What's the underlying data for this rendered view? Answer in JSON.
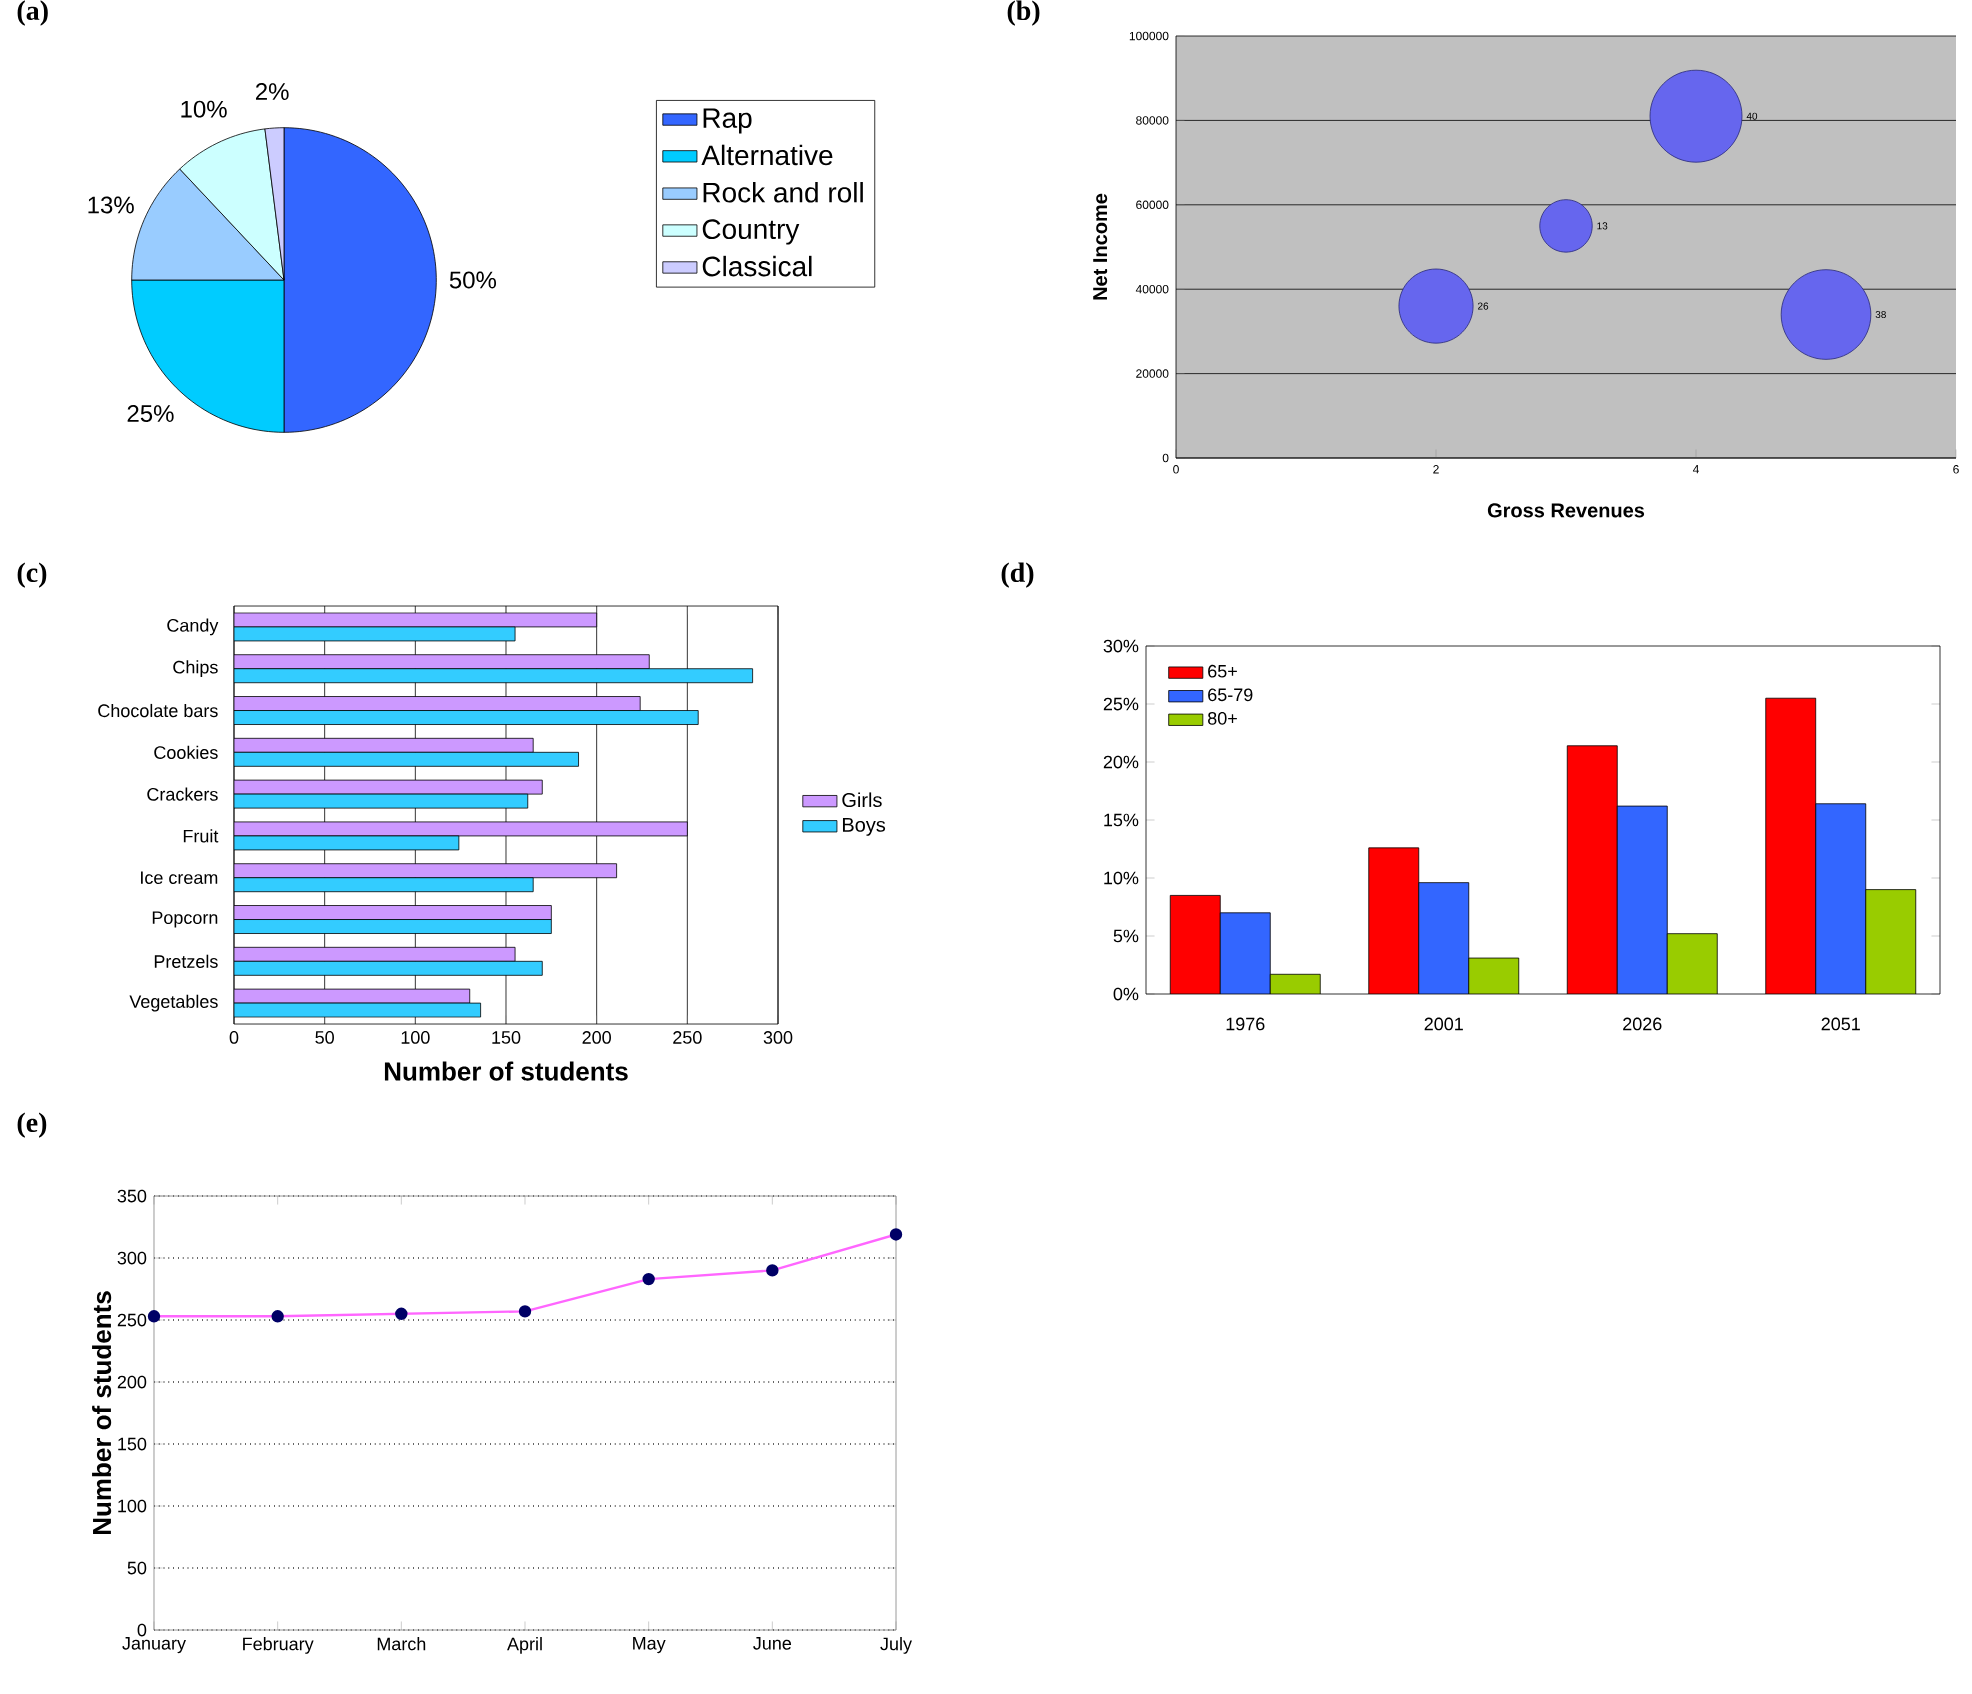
{
  "chart_data": [
    {
      "type": "pie",
      "title": "(a)",
      "categories": [
        "Rap",
        "Alternative",
        "Rock and roll",
        "Country",
        "Classical"
      ],
      "values": [
        50,
        25,
        13,
        10,
        2
      ],
      "colors": [
        "#3366ff",
        "#00ccff",
        "#99ccff",
        "#ccffff",
        "#ccccff"
      ],
      "value_labels": [
        "50%",
        "25%",
        "13%",
        "10%",
        "2%"
      ],
      "legend": "right"
    },
    {
      "type": "bubble",
      "title": "(b)",
      "xlabel": "Gross Revenues",
      "ylabel": "Net Income",
      "x": [
        2,
        3,
        4,
        5
      ],
      "values": [
        36000,
        55000,
        81000,
        34000
      ],
      "sizes": [
        26,
        13,
        40,
        38
      ],
      "value_labels": [
        "26",
        "13",
        "40",
        "38"
      ],
      "color": "#6666ee",
      "xlim": [
        0,
        6
      ],
      "xticks": [
        0,
        2,
        4,
        6
      ],
      "ylim": [
        0,
        100000
      ],
      "yticks": [
        0,
        20000,
        40000,
        60000,
        80000,
        100000
      ],
      "grid": "y"
    },
    {
      "type": "bar",
      "title": "(c)",
      "orientation": "horizontal",
      "xlabel": "Number of students",
      "categories": [
        "Candy",
        "Chips",
        "Chocolate bars",
        "Cookies",
        "Crackers",
        "Fruit",
        "Ice cream",
        "Popcorn",
        "Pretzels",
        "Vegetables"
      ],
      "series": [
        {
          "name": "Girls",
          "color": "#cc99ff",
          "values": [
            200,
            229,
            224,
            165,
            170,
            250,
            211,
            175,
            155,
            130
          ]
        },
        {
          "name": "Boys",
          "color": "#33ccff",
          "values": [
            155,
            286,
            256,
            190,
            162,
            124,
            165,
            175,
            170,
            136
          ]
        }
      ],
      "xlim": [
        0,
        300
      ],
      "xticks": [
        0,
        50,
        100,
        150,
        200,
        250,
        300
      ],
      "grid": "x",
      "legend": "right"
    },
    {
      "type": "bar",
      "title": "(d)",
      "categories": [
        "1976",
        "2001",
        "2026",
        "2051"
      ],
      "series": [
        {
          "name": "65+",
          "color": "#ff0000",
          "values": [
            8.5,
            12.6,
            21.4,
            25.5
          ]
        },
        {
          "name": "65-79",
          "color": "#3366ff",
          "values": [
            7,
            9.6,
            16.2,
            16.4
          ]
        },
        {
          "name": "80+",
          "color": "#99cc00",
          "values": [
            1.7,
            3.1,
            5.2,
            9
          ]
        }
      ],
      "ylim": [
        0,
        30
      ],
      "yticks": [
        {
          "value": 0,
          "label": "0%"
        },
        {
          "value": 5,
          "label": "5%"
        },
        {
          "value": 10,
          "label": "10%"
        },
        {
          "value": 15,
          "label": "15%"
        },
        {
          "value": 20,
          "label": "20%"
        },
        {
          "value": 25,
          "label": "25%"
        },
        {
          "value": 30,
          "label": "30%"
        }
      ],
      "legend": "top left"
    },
    {
      "type": "line",
      "title": "(e)",
      "ylabel": "Number of students",
      "categories": [
        "January",
        "February",
        "March",
        "April",
        "May",
        "June",
        "July"
      ],
      "values": [
        253,
        253,
        255,
        257,
        283,
        290,
        319
      ],
      "color": "#ff66ff",
      "marker": "circle",
      "line_style": "solid",
      "ylim": [
        0,
        350
      ],
      "yticks": [
        0,
        50,
        100,
        150,
        200,
        250,
        300,
        350
      ],
      "grid": "y"
    }
  ]
}
